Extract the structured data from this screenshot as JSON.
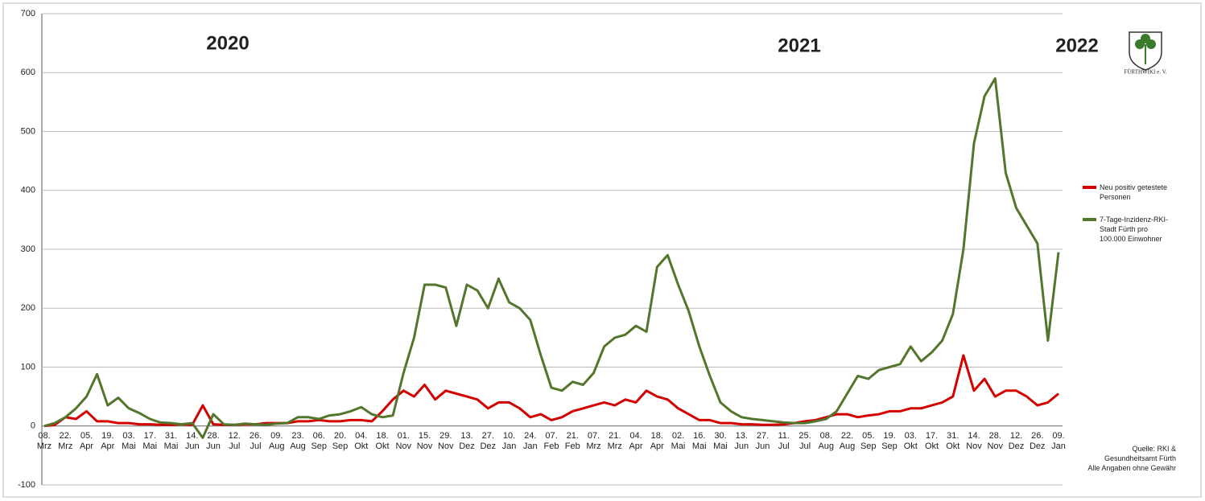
{
  "chart_data": {
    "type": "line",
    "categories": [
      "08. Mrz",
      null,
      "22. Mrz",
      null,
      "05. Apr",
      null,
      "19. Apr",
      null,
      "03. Mai",
      null,
      "17. Mai",
      null,
      "31. Mai",
      null,
      "14. Jun",
      null,
      "28. Jun",
      null,
      "12. Jul",
      null,
      "26. Jul",
      null,
      "09. Aug",
      null,
      "23. Aug",
      null,
      "06. Sep",
      null,
      "20. Sep",
      null,
      "04. Okt",
      null,
      "18. Okt",
      null,
      "01. Nov",
      null,
      "15. Nov",
      null,
      "29. Nov",
      null,
      "13. Dez",
      null,
      "27. Dez",
      null,
      "10. Jan",
      null,
      "24. Jan",
      null,
      "07. Feb",
      null,
      "21. Feb",
      null,
      "07. Mrz",
      null,
      "21. Mrz",
      null,
      "04. Apr",
      null,
      "18. Apr",
      null,
      "02. Mai",
      null,
      "16. Mai",
      null,
      "30. Mai",
      null,
      "13. Jun",
      null,
      "27. Jun",
      null,
      "11. Jul",
      null,
      "25. Jul",
      null,
      "08. Aug",
      null,
      "22. Aug",
      null,
      "05. Sep",
      null,
      "19. Sep",
      null,
      "03. Okt",
      null,
      "17. Okt",
      null,
      "31. Okt",
      null,
      "14. Nov",
      null,
      "28. Nov",
      null,
      "12. Dez",
      null,
      "26. Dez",
      null,
      "09. Jan"
    ],
    "series": [
      {
        "name": "Neu positiv getestete Personen",
        "color": "#d40000",
        "values": [
          0,
          2,
          15,
          12,
          25,
          8,
          8,
          5,
          5,
          3,
          3,
          2,
          2,
          3,
          2,
          35,
          3,
          2,
          2,
          3,
          3,
          5,
          5,
          5,
          8,
          8,
          10,
          8,
          8,
          10,
          10,
          8,
          25,
          45,
          60,
          50,
          70,
          45,
          60,
          55,
          50,
          45,
          30,
          40,
          40,
          30,
          15,
          20,
          10,
          15,
          25,
          30,
          35,
          40,
          35,
          45,
          40,
          60,
          50,
          45,
          30,
          20,
          10,
          10,
          5,
          5,
          3,
          3,
          2,
          2,
          3,
          5,
          8,
          10,
          15,
          20,
          20,
          15,
          18,
          20,
          25,
          25,
          30,
          30,
          35,
          40,
          50,
          120,
          60,
          80,
          50,
          60,
          60,
          50,
          35,
          40,
          55
        ]
      },
      {
        "name": "7-Tage-Inzidenz-RKI-Stadt Fürth pro 100.000 Einwohner",
        "color": "#54762c",
        "values": [
          0,
          5,
          15,
          30,
          50,
          88,
          35,
          48,
          30,
          22,
          12,
          6,
          5,
          3,
          5,
          -20,
          20,
          3,
          2,
          4,
          3,
          2,
          4,
          5,
          15,
          15,
          12,
          18,
          20,
          25,
          32,
          20,
          15,
          18,
          90,
          150,
          240,
          240,
          235,
          170,
          240,
          230,
          200,
          250,
          210,
          200,
          180,
          120,
          65,
          60,
          75,
          70,
          90,
          135,
          150,
          155,
          170,
          160,
          270,
          290,
          240,
          195,
          135,
          85,
          40,
          25,
          15,
          12,
          10,
          8,
          6,
          5,
          5,
          8,
          12,
          25,
          55,
          85,
          80,
          95,
          100,
          105,
          135,
          110,
          125,
          145,
          190,
          300,
          480,
          560,
          590,
          430,
          370,
          340,
          310,
          145,
          295
        ]
      }
    ],
    "ylim": [
      -100,
      700
    ],
    "yticks": [
      -100,
      0,
      100,
      200,
      300,
      400,
      500,
      600,
      700
    ],
    "grid": true,
    "annotations": [
      "2020",
      "2021",
      "2022"
    ],
    "logo_text": "FÜRTHWIKI e. V.",
    "source": [
      "Quelle: RKI &",
      "Gesundheitsamt Fürth",
      "Alle Angaben ohne Gewähr"
    ]
  }
}
